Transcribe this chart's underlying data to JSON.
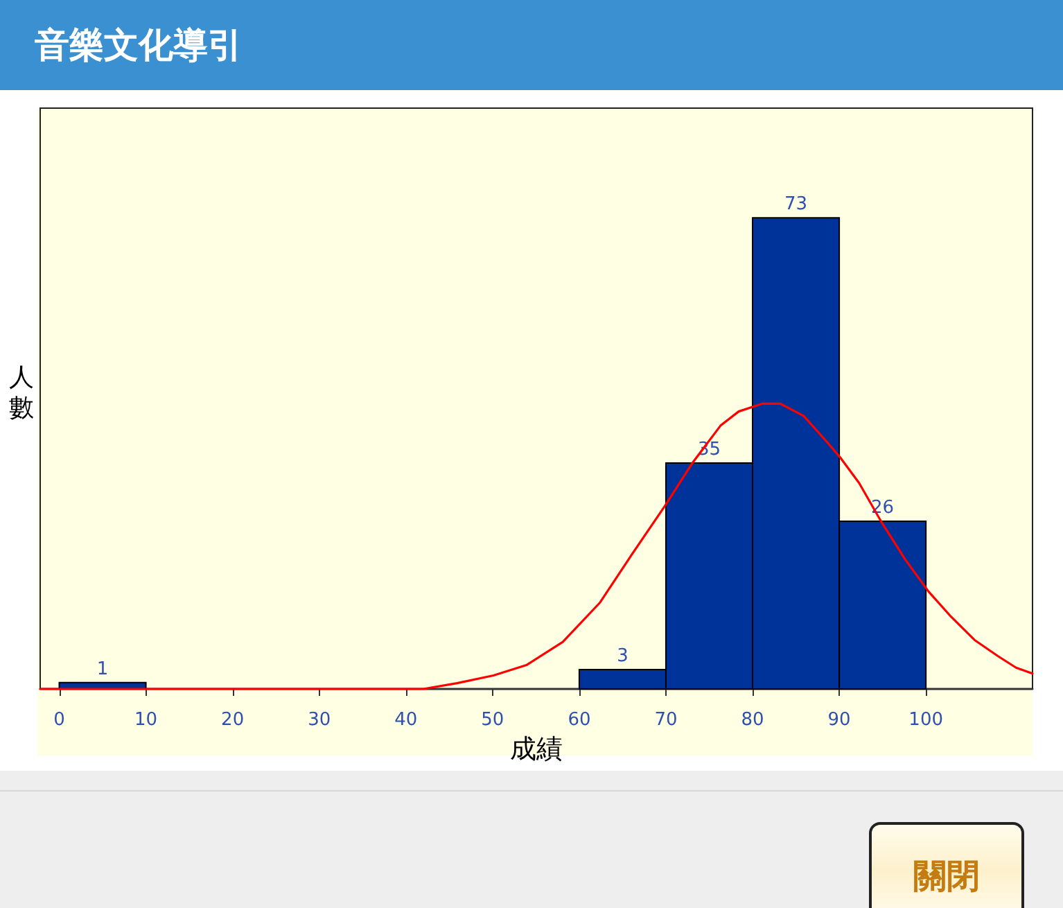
{
  "chart_data": {
    "type": "histogram",
    "title": "音樂文化導引",
    "xlabel": "成績",
    "ylabel": "人數",
    "annotations": [
      "關閉"
    ],
    "series": [
      {
        "color": "#003399",
        "bins": [
          0,
          10,
          20,
          30,
          40,
          50,
          60,
          70,
          80,
          90,
          100
        ],
        "values": [
          1,
          0,
          0,
          0,
          0,
          0,
          3,
          35,
          73,
          26
        ],
        "value_labels": [
          "1",
          null,
          null,
          null,
          null,
          null,
          "3",
          "35",
          "73",
          "26"
        ]
      },
      {
        "type": "line",
        "color": "#ff0000",
        "marker": "none",
        "x": [
          -2.2,
          42,
          45.9,
          50.1,
          53.9,
          58.1,
          62.4,
          66.1,
          69.9,
          73.1,
          76.3,
          78.4,
          81.1,
          83.2,
          85.9,
          88.5,
          90.1,
          92.3,
          94.9,
          97.6,
          100.3,
          102.9,
          105.6,
          108.3,
          110.4,
          112.3
        ],
        "values": [
          0,
          0,
          0.9,
          2.1,
          3.7,
          7.3,
          13.4,
          20.9,
          28.4,
          35.1,
          40.8,
          43.0,
          44.2,
          44.2,
          42.3,
          38.4,
          35.9,
          31.9,
          25.8,
          20.1,
          15.1,
          11.2,
          7.6,
          5.1,
          3.3,
          2.4
        ]
      }
    ],
    "xlim": [
      -2.2,
      112.3
    ],
    "xticks": [
      0,
      10,
      20,
      30,
      40,
      50,
      60,
      70,
      80,
      90,
      100
    ],
    "ylim": [
      0,
      90
    ],
    "tick_labels": "x",
    "grid": false
  }
}
